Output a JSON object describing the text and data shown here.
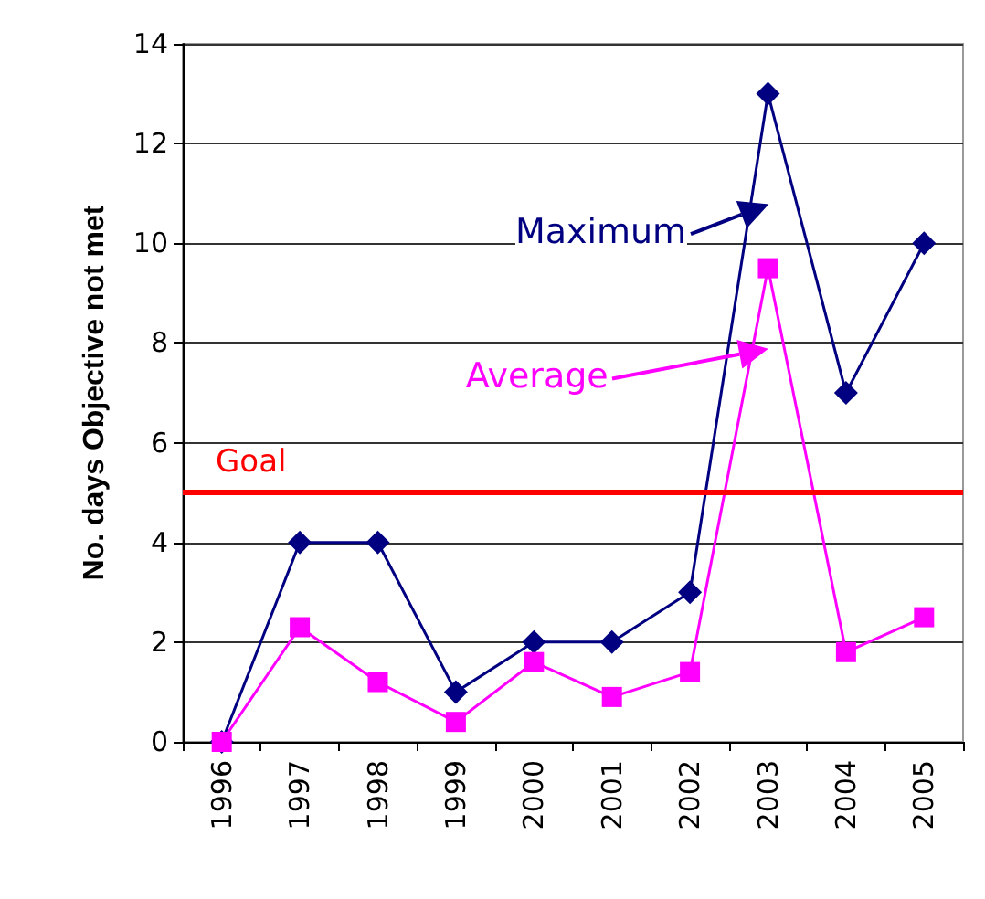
{
  "chart_data": {
    "type": "line",
    "ylabel": "No. days Objective not met",
    "categories": [
      "1996",
      "1997",
      "1998",
      "1999",
      "2000",
      "2001",
      "2002",
      "2003",
      "2004",
      "2005"
    ],
    "series": [
      {
        "name": "Maximum",
        "color": "#000080",
        "marker": "diamond",
        "values": [
          0,
          4,
          4,
          1,
          2,
          2,
          3,
          13,
          7,
          10
        ]
      },
      {
        "name": "Average",
        "color": "#ff00ff",
        "marker": "square",
        "values": [
          0,
          2.3,
          1.2,
          0.4,
          1.6,
          0.9,
          1.4,
          9.5,
          1.8,
          2.5
        ]
      }
    ],
    "ylim": [
      0,
      14
    ],
    "yticks": [
      0,
      2,
      4,
      6,
      8,
      10,
      12,
      14
    ],
    "grid": "y",
    "legend": "top right",
    "ref_lines": [
      {
        "axis": "y",
        "value": 5,
        "label": "Goal",
        "color": "#ff0000"
      }
    ]
  }
}
